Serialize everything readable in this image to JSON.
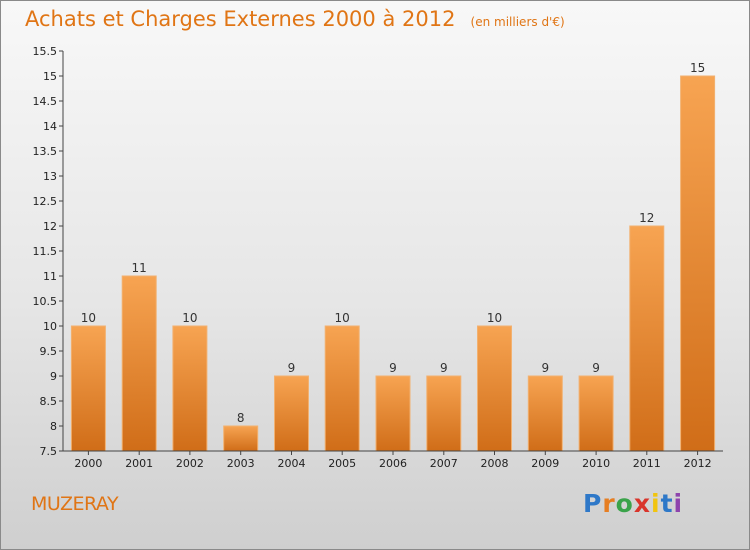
{
  "chart_data": {
    "type": "bar",
    "title": "Achats et Charges Externes 2000 à 2012",
    "unit_note": "(en milliers d'€)",
    "categories": [
      "2000",
      "2001",
      "2002",
      "2003",
      "2004",
      "2005",
      "2006",
      "2007",
      "2008",
      "2009",
      "2010",
      "2011",
      "2012"
    ],
    "values": [
      10,
      11,
      10,
      8,
      9,
      10,
      9,
      9,
      10,
      9,
      9,
      12,
      15
    ],
    "ylim": [
      7.5,
      15.5
    ],
    "yticks": [
      "7.5",
      "8",
      "8.5",
      "9",
      "9.5",
      "10",
      "10.5",
      "11",
      "11.5",
      "12",
      "12.5",
      "13",
      "13.5",
      "14",
      "14.5",
      "15",
      "15.5"
    ],
    "grid": false,
    "bar_color_top": "#f7a452",
    "bar_color_bottom": "#d06d18"
  },
  "footer": {
    "commune": "MUZERAY",
    "logo_letters": [
      "P",
      "r",
      "o",
      "x",
      "i",
      "t",
      "i"
    ],
    "logo_colors": [
      "#2e78c8",
      "#e67e22",
      "#3aa34a",
      "#d9342b",
      "#f1c40f",
      "#2e78c8",
      "#8e44ad"
    ]
  },
  "colors": {
    "accent": "#e07515"
  }
}
